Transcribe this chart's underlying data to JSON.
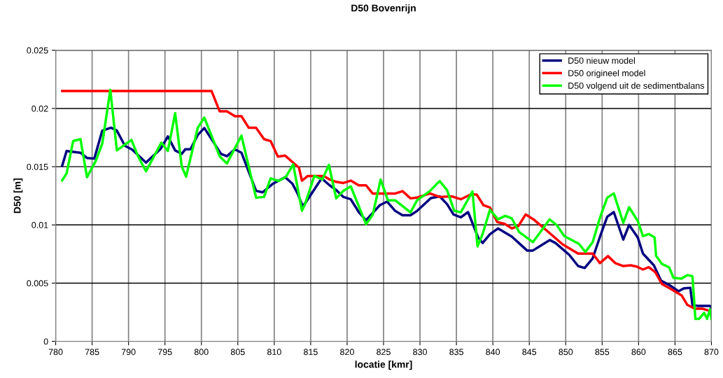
{
  "chart_data": {
    "type": "line",
    "title": "D50 Bovenrijn",
    "xlabel": "locatie [kmr]",
    "ylabel": "D50 [m]",
    "xlim": [
      780,
      870
    ],
    "xticks": [
      780,
      785,
      790,
      795,
      800,
      805,
      810,
      815,
      820,
      825,
      830,
      835,
      840,
      845,
      850,
      855,
      860,
      865,
      870
    ],
    "ylim": [
      0,
      0.025
    ],
    "yticks": [
      0,
      0.005,
      0.01,
      0.015,
      0.02,
      0.025
    ],
    "grid": true,
    "legend": "top right",
    "marker": "none",
    "line_style": "solid",
    "series": [
      {
        "name": "D50 nieuw model",
        "color": "#000080",
        "x": [
          780.9,
          781.5,
          783.4,
          784.3,
          785.3,
          786.4,
          787.6,
          788.4,
          789.5,
          790.5,
          792.4,
          794.4,
          795.4,
          796.4,
          797.3,
          797.8,
          798.5,
          799.5,
          800.4,
          802.7,
          803.5,
          804.6,
          805.5,
          807.5,
          808.4,
          809.8,
          811.5,
          812.5,
          813.2,
          813.9,
          814.4,
          816.5,
          817.6,
          818.5,
          819.5,
          820.5,
          821.6,
          822.6,
          824.5,
          825.5,
          826.6,
          827.6,
          828.7,
          829.6,
          831.5,
          832.7,
          833.7,
          834.6,
          835.6,
          836.6,
          838.0,
          838.6,
          839.6,
          840.7,
          842.6,
          844.7,
          845.5,
          847.8,
          848.6,
          850.5,
          851.7,
          852.6,
          853.7,
          854.9,
          855.7,
          856.6,
          857.9,
          858.7,
          859.9,
          860.6,
          862.1,
          863.1,
          864.2,
          865.5,
          866.2,
          867.1,
          867.4,
          868.1,
          869.8,
          870.0
        ],
        "values": [
          0.0151,
          0.01635,
          0.0162,
          0.01575,
          0.0157,
          0.0181,
          0.01835,
          0.0181,
          0.0168,
          0.01647,
          0.01535,
          0.01653,
          0.0176,
          0.0164,
          0.0161,
          0.0165,
          0.0165,
          0.01772,
          0.01832,
          0.0161,
          0.0159,
          0.0165,
          0.0162,
          0.01293,
          0.0128,
          0.01353,
          0.0141,
          0.01353,
          0.0127,
          0.0116,
          0.012,
          0.014,
          0.0134,
          0.013,
          0.0124,
          0.0122,
          0.0111,
          0.0104,
          0.0117,
          0.012,
          0.0112,
          0.01083,
          0.01083,
          0.0112,
          0.0123,
          0.01245,
          0.0118,
          0.0109,
          0.01065,
          0.0111,
          0.0089,
          0.00845,
          0.0092,
          0.0097,
          0.009,
          0.0078,
          0.0078,
          0.0087,
          0.00845,
          0.00742,
          0.00647,
          0.0063,
          0.00713,
          0.00934,
          0.0107,
          0.0111,
          0.00874,
          0.01,
          0.0089,
          0.00754,
          0.00653,
          0.0052,
          0.00485,
          0.0043,
          0.00455,
          0.0046,
          0.0031,
          0.00305,
          0.00305,
          0.0029
        ]
      },
      {
        "name": "D50 origineel model",
        "color": "#ff0000",
        "x": [
          780.9,
          801.4,
          802.5,
          803.5,
          804.6,
          805.5,
          806.5,
          807.5,
          808.6,
          809.5,
          810.5,
          811.5,
          812.5,
          813.4,
          813.8,
          814.6,
          816.8,
          817.6,
          818.5,
          819.5,
          820.5,
          821.6,
          822.6,
          823.5,
          826.6,
          827.6,
          828.7,
          829.6,
          831.4,
          832.7,
          834.4,
          835.6,
          837.0,
          837.8,
          838.7,
          839.6,
          840.6,
          841.6,
          842.6,
          843.5,
          844.5,
          845.7,
          847.6,
          849.6,
          851.7,
          853.7,
          854.7,
          855.8,
          856.8,
          857.9,
          858.9,
          859.7,
          860.6,
          861.4,
          862.3,
          863.2,
          864.3,
          865.9,
          866.7,
          867.7,
          868.8,
          870.0
        ],
        "values": [
          0.0215,
          0.0215,
          0.01976,
          0.01976,
          0.01934,
          0.01934,
          0.01834,
          0.01834,
          0.01737,
          0.0172,
          0.01587,
          0.01595,
          0.0154,
          0.0149,
          0.0138,
          0.0142,
          0.0142,
          0.0139,
          0.0137,
          0.0136,
          0.0138,
          0.0134,
          0.0134,
          0.0127,
          0.0127,
          0.0129,
          0.01228,
          0.01235,
          0.0127,
          0.0124,
          0.01245,
          0.0122,
          0.01263,
          0.0126,
          0.0117,
          0.0115,
          0.01024,
          0.0101,
          0.0097,
          0.0099,
          0.0109,
          0.01042,
          0.0094,
          0.00832,
          0.00754,
          0.00754,
          0.00672,
          0.00732,
          0.00672,
          0.00647,
          0.00653,
          0.00643,
          0.00617,
          0.00637,
          0.00593,
          0.00493,
          0.00455,
          0.00395,
          0.00313,
          0.0028,
          0.0028,
          0.00257
        ]
      },
      {
        "name": "D50 volgend uit de sedimentbalans",
        "color": "#00ff00",
        "x": [
          780.9,
          781.5,
          782.4,
          783.4,
          784.3,
          785.5,
          786.4,
          787.5,
          788.4,
          790.4,
          791.3,
          792.4,
          794.5,
          795.4,
          796.4,
          797.3,
          797.9,
          799.5,
          800.4,
          802.5,
          803.5,
          805.5,
          807.5,
          808.6,
          809.5,
          810.6,
          811.6,
          812.6,
          813.8,
          814.2,
          815.5,
          816.6,
          817.5,
          818.5,
          819.5,
          820.5,
          822.6,
          823.5,
          824.6,
          825.6,
          826.6,
          828.7,
          829.6,
          831.4,
          832.7,
          833.7,
          834.7,
          835.6,
          837.2,
          837.9,
          838.6,
          839.6,
          840.7,
          841.7,
          842.6,
          843.6,
          845.5,
          847.8,
          848.8,
          849.8,
          851.8,
          852.7,
          853.7,
          854.7,
          855.7,
          856.6,
          857.9,
          858.7,
          859.9,
          860.6,
          861.4,
          862.2,
          862.4,
          863.2,
          864.2,
          864.8,
          865.9,
          866.7,
          867.4,
          867.8,
          868.3,
          869.0,
          869.4,
          869.8,
          870.0
        ],
        "values": [
          0.01383,
          0.01443,
          0.0172,
          0.01737,
          0.0141,
          0.0155,
          0.017,
          0.0216,
          0.0164,
          0.0173,
          0.0159,
          0.01461,
          0.01707,
          0.01635,
          0.0196,
          0.01503,
          0.01415,
          0.01834,
          0.01922,
          0.0159,
          0.01527,
          0.01766,
          0.01234,
          0.0124,
          0.014,
          0.01377,
          0.01413,
          0.0152,
          0.01122,
          0.01174,
          0.01421,
          0.0139,
          0.01515,
          0.01228,
          0.01293,
          0.01331,
          0.01006,
          0.01084,
          0.0139,
          0.01211,
          0.01211,
          0.01108,
          0.01211,
          0.01293,
          0.01377,
          0.013,
          0.01122,
          0.01108,
          0.01287,
          0.00816,
          0.00922,
          0.0113,
          0.01048,
          0.01078,
          0.01056,
          0.0094,
          0.00852,
          0.01048,
          0.00996,
          0.00904,
          0.00838,
          0.00768,
          0.00852,
          0.01062,
          0.01234,
          0.0127,
          0.01018,
          0.01152,
          0.01032,
          0.00904,
          0.00922,
          0.00892,
          0.00736,
          0.00665,
          0.00635,
          0.00545,
          0.00539,
          0.00569,
          0.00559,
          0.00193,
          0.00193,
          0.00245,
          0.00193,
          0.00275,
          0.00193
        ]
      }
    ]
  }
}
